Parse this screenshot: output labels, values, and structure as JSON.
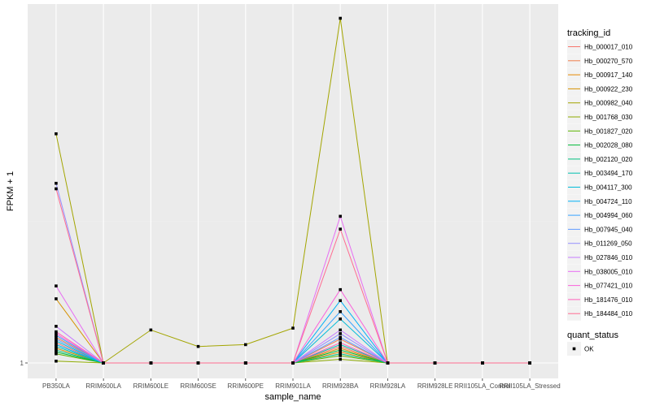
{
  "chart_data": {
    "type": "line",
    "xlabel": "sample_name",
    "ylabel": "FPKM + 1",
    "categories": [
      "PB350LA",
      "RRIM600LA",
      "RRIM600LE",
      "RRIM600SE",
      "RRIM600PE",
      "RRIM901LA",
      "RRIM928BA",
      "RRIM928LA",
      "RRIM928LE",
      "RRII105LA_Control",
      "RRII105LA_Stressed"
    ],
    "y_ticks": [
      {
        "value": 1,
        "label": "1"
      }
    ],
    "ylim": [
      1,
      2.9
    ],
    "grid": true,
    "legend_placement": "right",
    "legend_title": "tracking_id",
    "points_legend": {
      "title": "quant_status",
      "label": "OK"
    },
    "series": [
      {
        "name": "Hb_000017_010",
        "color": "#F8766D",
        "values": [
          1.11,
          1,
          1,
          1,
          1,
          1,
          1.09,
          1,
          1,
          1,
          1
        ]
      },
      {
        "name": "Hb_000270_570",
        "color": "#F07E4D",
        "values": [
          1.14,
          1,
          1,
          1,
          1,
          1,
          1.13,
          1,
          1,
          1,
          1
        ]
      },
      {
        "name": "Hb_000917_140",
        "color": "#E58700",
        "values": [
          1.08,
          1,
          1,
          1,
          1,
          1,
          1.06,
          1,
          1,
          1,
          1
        ]
      },
      {
        "name": "Hb_000922_230",
        "color": "#D69100",
        "values": [
          1.35,
          1,
          1,
          1,
          1,
          1,
          1.08,
          1,
          1,
          1,
          1
        ]
      },
      {
        "name": "Hb_000982_040",
        "color": "#A3A500",
        "values": [
          2.25,
          1,
          1.18,
          1.09,
          1.1,
          1.19,
          2.88,
          1,
          1,
          1,
          1
        ]
      },
      {
        "name": "Hb_001768_030",
        "color": "#8EAB00",
        "values": [
          1.01,
          1,
          1,
          1,
          1,
          1,
          1.02,
          1,
          1,
          1,
          1
        ]
      },
      {
        "name": "Hb_001827_020",
        "color": "#5BB300",
        "values": [
          1.05,
          1,
          1,
          1,
          1,
          1,
          1.04,
          1,
          1,
          1,
          1
        ]
      },
      {
        "name": "Hb_002028_080",
        "color": "#00BA38",
        "values": [
          1.06,
          1,
          1,
          1,
          1,
          1,
          1.07,
          1,
          1,
          1,
          1
        ]
      },
      {
        "name": "Hb_002120_020",
        "color": "#00BF7D",
        "values": [
          1.07,
          1,
          1,
          1,
          1,
          1,
          1.05,
          1,
          1,
          1,
          1
        ]
      },
      {
        "name": "Hb_003494_170",
        "color": "#00C0AF",
        "values": [
          1.09,
          1,
          1,
          1,
          1,
          1,
          1.1,
          1,
          1,
          1,
          1
        ]
      },
      {
        "name": "Hb_004117_300",
        "color": "#00BCD8",
        "values": [
          1.12,
          1,
          1,
          1,
          1,
          1,
          1.24,
          1,
          1,
          1,
          1
        ]
      },
      {
        "name": "Hb_004724_110",
        "color": "#00B0F6",
        "values": [
          1.1,
          1,
          1,
          1,
          1,
          1,
          1.34,
          1,
          1,
          1,
          1
        ]
      },
      {
        "name": "Hb_004994_060",
        "color": "#35A2FF",
        "values": [
          1.15,
          1,
          1,
          1,
          1,
          1,
          1.28,
          1,
          1,
          1,
          1
        ]
      },
      {
        "name": "Hb_007945_040",
        "color": "#619CFF",
        "values": [
          1.13,
          1,
          1,
          1,
          1,
          1,
          1.14,
          1,
          1,
          1,
          1
        ]
      },
      {
        "name": "Hb_011269_050",
        "color": "#9590FF",
        "values": [
          1.98,
          1,
          1,
          1,
          1,
          1,
          1.16,
          1,
          1,
          1,
          1
        ]
      },
      {
        "name": "Hb_027846_010",
        "color": "#C77CFF",
        "values": [
          1.2,
          1,
          1,
          1,
          1,
          1,
          1.18,
          1,
          1,
          1,
          1
        ]
      },
      {
        "name": "Hb_038005_010",
        "color": "#E76BF3",
        "values": [
          1.42,
          1,
          1,
          1,
          1,
          1,
          1.8,
          1,
          1,
          1,
          1
        ]
      },
      {
        "name": "Hb_077421_010",
        "color": "#FA62DB",
        "values": [
          1.16,
          1,
          1,
          1,
          1,
          1,
          1.4,
          1,
          1,
          1,
          1
        ]
      },
      {
        "name": "Hb_181476_010",
        "color": "#FF62BC",
        "values": [
          1.17,
          1,
          1,
          1,
          1,
          1,
          1.11,
          1,
          1,
          1,
          1
        ]
      },
      {
        "name": "Hb_184484_010",
        "color": "#FF6C91",
        "values": [
          1.95,
          1,
          1,
          1,
          1,
          1,
          1.73,
          1,
          1,
          1,
          1
        ]
      }
    ]
  }
}
